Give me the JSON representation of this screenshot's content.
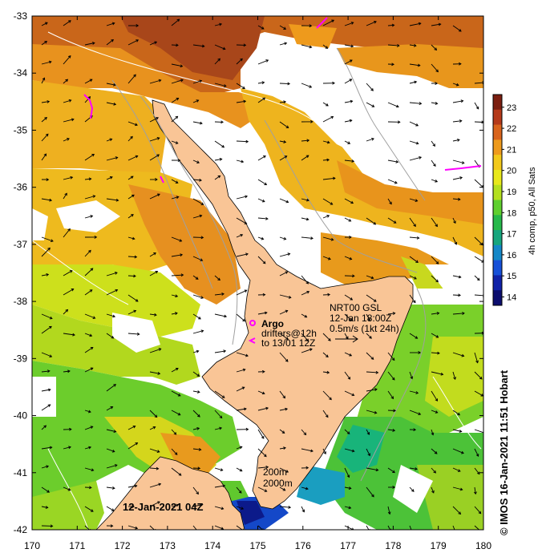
{
  "map": {
    "x_ticks": [
      "170",
      "171",
      "172",
      "173",
      "174",
      "175",
      "176",
      "177",
      "178",
      "179",
      "180"
    ],
    "y_ticks": [
      "-33",
      "-34",
      "-35",
      "-36",
      "-37",
      "-38",
      "-39",
      "-40",
      "-41",
      "-42"
    ],
    "lon_range": [
      170,
      180
    ],
    "lat_range": [
      -42,
      -33
    ],
    "land_color": "#f9c596",
    "cloud_color": "#ffffff"
  },
  "colorbar": {
    "ticks": [
      "23",
      "22",
      "21",
      "20",
      "19",
      "18",
      "17",
      "16",
      "15",
      "14"
    ],
    "range": [
      13.6,
      23.6
    ],
    "title": "4h comp, p50, All Sats",
    "colors": [
      "#7b1e10",
      "#b53a1a",
      "#d9641c",
      "#ee9a1c",
      "#f2c91a",
      "#e8e81a",
      "#b4e01e",
      "#5fcf2e",
      "#26b84a",
      "#16a67e",
      "#1488c8",
      "#1650d8",
      "#1022a8",
      "#0c0e6e"
    ]
  },
  "legend": {
    "argo_label": "Argo",
    "drifters_line1": "drifters@12h",
    "drifters_line2": "to 13/01 12Z",
    "current_line1": "NRT00 GSL",
    "current_line2": "12-Jan 18:00Z",
    "current_line3": "0.5m/s (1kt 24h)",
    "contour_200": "200m",
    "contour_2000": "2000m"
  },
  "date_label": "12-Jan-2021 04Z",
  "credit": "© IMOS 16-Jan-2021 11:51 Hobart",
  "markers": {
    "argo_color": "#ff00ff",
    "drifter_color": "#ff00ff"
  }
}
